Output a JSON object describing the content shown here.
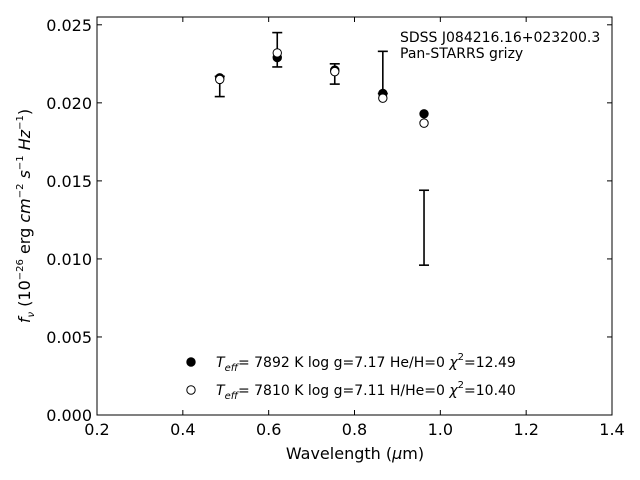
{
  "chart_data": {
    "type": "scatter",
    "title": "",
    "xlabel": "Wavelength (μm)",
    "ylabel": "f_ν (10^-26 erg cm^-2 s^-1 Hz^-1)",
    "xlim": [
      0.2,
      1.4
    ],
    "ylim": [
      0.0,
      0.0255
    ],
    "x_ticks": [
      "0.2",
      "0.4",
      "0.6",
      "0.8",
      "1.0",
      "1.2",
      "1.4"
    ],
    "y_ticks": [
      "0.000",
      "0.005",
      "0.010",
      "0.015",
      "0.020",
      "0.025"
    ],
    "x_tick_values": [
      0.2,
      0.4,
      0.6,
      0.8,
      1.0,
      1.2,
      1.4
    ],
    "y_tick_values": [
      0.0,
      0.005,
      0.01,
      0.015,
      0.02,
      0.025
    ],
    "grid": false,
    "annotation": {
      "line1": "SDSS J084216.16+023200.3",
      "line2": "Pan-STARRS grizy"
    },
    "observed": {
      "name": "",
      "x": [
        0.486,
        0.62,
        0.754,
        0.866,
        0.962
      ],
      "y": [
        0.0211,
        0.0234,
        0.0219,
        0.0217,
        0.012
      ],
      "yerr_low": [
        0.0007,
        0.0011,
        0.0007,
        0.0011,
        0.0024
      ],
      "yerr_high": [
        0.0006,
        0.0011,
        0.0006,
        0.0016,
        0.0024
      ]
    },
    "series": [
      {
        "name": "T_eff= 7892 K log g=7.17 He/H=0 χ²=12.49",
        "marker": "filled",
        "x": [
          0.486,
          0.62,
          0.754,
          0.866,
          0.962
        ],
        "y": [
          0.0216,
          0.0229,
          0.0221,
          0.0206,
          0.0193
        ]
      },
      {
        "name": "T_eff= 7810 K log g=7.11 H/He=0 χ²=10.40",
        "marker": "open",
        "x": [
          0.486,
          0.62,
          0.754,
          0.866,
          0.962
        ],
        "y": [
          0.0215,
          0.0232,
          0.022,
          0.0203,
          0.0187
        ]
      }
    ],
    "legend": {
      "placement": "lower-center",
      "entries": [
        {
          "teff_label": "T",
          "teff_sub": "eff",
          "teff_eq": "=",
          "teff_val": "7892 K",
          "logg": "log g=7.17",
          "comp": "He/H=0",
          "chi_label": "χ",
          "chi_sup": "2",
          "chi_val": "=12.49"
        },
        {
          "teff_label": "T",
          "teff_sub": "eff",
          "teff_eq": "=",
          "teff_val": "7810 K",
          "logg": "log g=7.11",
          "comp": "H/He=0",
          "chi_label": "χ",
          "chi_sup": "2",
          "chi_val": "=10.40"
        }
      ]
    },
    "colors": {
      "marker": "#000000",
      "axes": "#000000"
    }
  }
}
